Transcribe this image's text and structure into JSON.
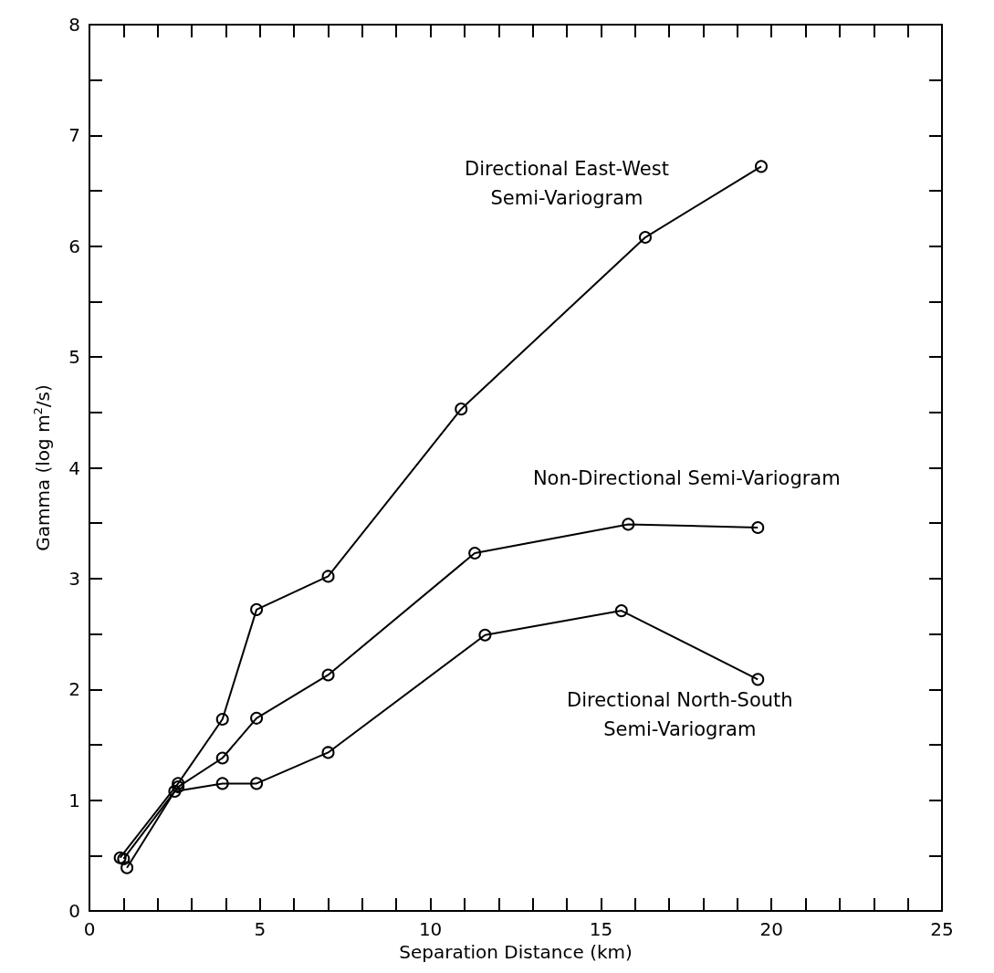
{
  "chart_data": {
    "type": "line",
    "xlabel": "Separation Distance (km)",
    "ylabel": "Gamma (log m$^{2}$/s)",
    "xlim": [
      0,
      25
    ],
    "ylim": [
      0,
      8
    ],
    "xticks": [
      0,
      {
        "value": 1,
        "label": null
      },
      {
        "value": 2,
        "label": null
      },
      {
        "value": 3,
        "label": null
      },
      {
        "value": 4,
        "label": null
      },
      5,
      {
        "value": 6,
        "label": null
      },
      {
        "value": 7,
        "label": null
      },
      {
        "value": 8,
        "label": null
      },
      {
        "value": 9,
        "label": null
      },
      10,
      {
        "value": 11,
        "label": null
      },
      {
        "value": 12,
        "label": null
      },
      {
        "value": 13,
        "label": null
      },
      {
        "value": 14,
        "label": null
      },
      15,
      {
        "value": 16,
        "label": null
      },
      {
        "value": 17,
        "label": null
      },
      {
        "value": 18,
        "label": null
      },
      {
        "value": 19,
        "label": null
      },
      20,
      {
        "value": 21,
        "label": null
      },
      {
        "value": 22,
        "label": null
      },
      {
        "value": 23,
        "label": null
      },
      {
        "value": 24,
        "label": null
      },
      25
    ],
    "yticks": [
      0,
      {
        "value": 0.5,
        "label": null
      },
      1,
      {
        "value": 1.5,
        "label": null
      },
      2,
      {
        "value": 2.5,
        "label": null
      },
      3,
      {
        "value": 3.5,
        "label": null
      },
      4,
      {
        "value": 4.5,
        "label": null
      },
      5,
      {
        "value": 5.5,
        "label": null
      },
      6,
      {
        "value": 6.5,
        "label": null
      },
      7,
      {
        "value": 7.5,
        "label": null
      },
      8
    ],
    "marker": "circle",
    "line_style": "solid",
    "grid": false,
    "legend": false,
    "series": [
      {
        "name": "Directional East-West\nSemi-Variogram",
        "color": "#000000",
        "x": [
          0.9,
          2.6,
          3.9,
          4.9,
          7.0,
          10.9,
          16.3,
          19.7
        ],
        "values": [
          0.48,
          1.15,
          1.73,
          2.72,
          3.02,
          4.53,
          6.08,
          6.72
        ]
      },
      {
        "name": "Non-Directional Semi-Variogram",
        "color": "#000000",
        "x": [
          1.0,
          2.6,
          3.9,
          4.9,
          7.0,
          11.3,
          15.8,
          19.6
        ],
        "values": [
          0.47,
          1.12,
          1.38,
          1.74,
          2.13,
          3.23,
          3.49,
          3.46
        ]
      },
      {
        "name": "Directional North-South\nSemi-Variogram",
        "color": "#000000",
        "x": [
          1.1,
          2.5,
          3.9,
          4.9,
          7.0,
          11.6,
          15.6,
          19.6
        ],
        "values": [
          0.39,
          1.08,
          1.15,
          1.15,
          1.43,
          2.49,
          2.71,
          2.09
        ]
      }
    ]
  }
}
